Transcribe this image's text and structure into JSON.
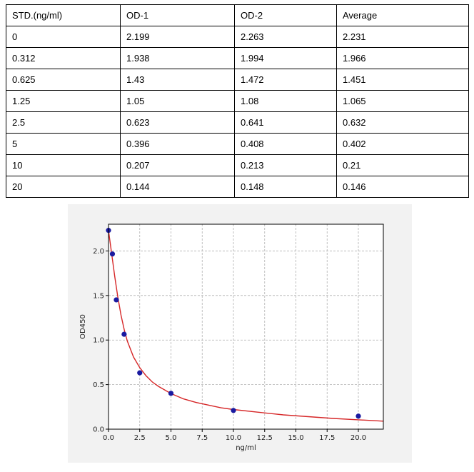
{
  "table": {
    "headers": [
      "STD.(ng/ml)",
      "OD-1",
      "OD-2",
      "Average"
    ],
    "rows": [
      [
        "0",
        "2.199",
        "2.263",
        "2.231"
      ],
      [
        "0.312",
        "1.938",
        "1.994",
        "1.966"
      ],
      [
        "0.625",
        "1.43",
        "1.472",
        "1.451"
      ],
      [
        "1.25",
        "1.05",
        "1.08",
        "1.065"
      ],
      [
        "2.5",
        "0.623",
        "0.641",
        "0.632"
      ],
      [
        "5",
        "0.396",
        "0.408",
        "0.402"
      ],
      [
        "10",
        "0.207",
        "0.213",
        "0.21"
      ],
      [
        "20",
        "0.144",
        "0.148",
        "0.146"
      ]
    ]
  },
  "chart_data": {
    "type": "scatter",
    "title": "",
    "xlabel": "ng/ml",
    "ylabel": "OD450",
    "xlim": [
      0,
      22
    ],
    "ylim": [
      0,
      2.3
    ],
    "xticks": [
      "0.0",
      "2.5",
      "5.0",
      "7.5",
      "10.0",
      "12.5",
      "15.0",
      "17.5",
      "20.0"
    ],
    "yticks": [
      "0.0",
      "0.5",
      "1.0",
      "1.5",
      "2.0"
    ],
    "grid": true,
    "series": [
      {
        "type": "scatter",
        "x": [
          0,
          0.312,
          0.625,
          1.25,
          2.5,
          5,
          10,
          20
        ],
        "y": [
          2.231,
          1.966,
          1.451,
          1.065,
          0.632,
          0.402,
          0.21,
          0.146
        ],
        "color": "#1a1aa0"
      },
      {
        "type": "line",
        "x": [
          0,
          0.25,
          0.5,
          0.75,
          1,
          1.25,
          1.5,
          2,
          2.5,
          3,
          3.5,
          4,
          5,
          6,
          7,
          8,
          9,
          10,
          12,
          14,
          16,
          18,
          20,
          22
        ],
        "y": [
          2.23,
          1.97,
          1.71,
          1.48,
          1.28,
          1.12,
          0.99,
          0.81,
          0.69,
          0.6,
          0.53,
          0.48,
          0.4,
          0.34,
          0.3,
          0.27,
          0.24,
          0.22,
          0.19,
          0.16,
          0.14,
          0.12,
          0.105,
          0.09
        ],
        "color": "#d62728"
      }
    ]
  }
}
